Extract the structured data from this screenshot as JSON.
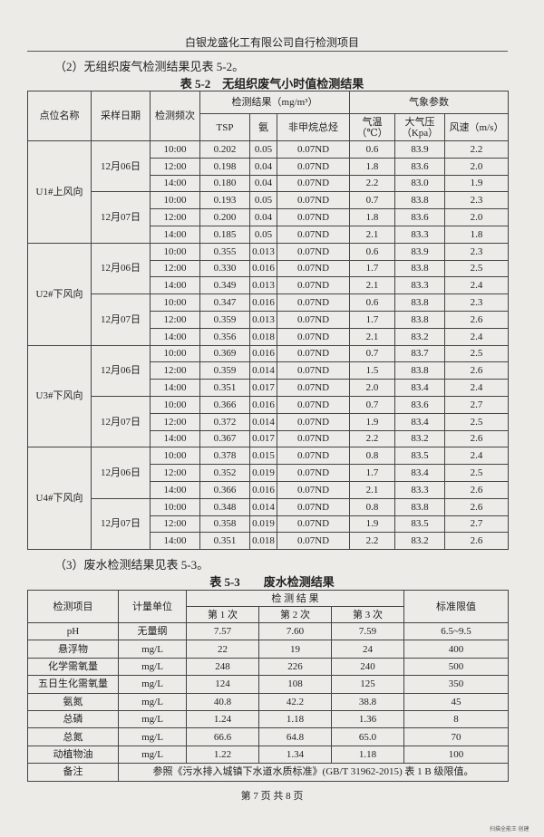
{
  "header": {
    "title": "白银龙盛化工有限公司自行检测项目"
  },
  "section2": {
    "intro": "（2）无组织废气检测结果见表 5-2。"
  },
  "table1": {
    "title": "表 5-2　无组织废气小时值检测结果",
    "header": {
      "site": "点位名称",
      "date": "采样日期",
      "freq": "检测频次",
      "results": "检测结果（mg/m³）",
      "tsp": "TSP",
      "nh3": "氨",
      "nmhc": "非甲烷总烃",
      "weather": "气象参数",
      "temp": "气温（℃）",
      "pressure": "大气压（Kpa）",
      "wind": "风速（m/s）"
    },
    "sites": [
      {
        "name": "U1#上风向",
        "dates": [
          {
            "date": "12月06日",
            "rows": [
              [
                "10:00",
                "0.202",
                "0.05",
                "0.07ND",
                "0.6",
                "83.9",
                "2.2"
              ],
              [
                "12:00",
                "0.198",
                "0.04",
                "0.07ND",
                "1.8",
                "83.6",
                "2.0"
              ],
              [
                "14:00",
                "0.180",
                "0.04",
                "0.07ND",
                "2.2",
                "83.0",
                "1.9"
              ]
            ]
          },
          {
            "date": "12月07日",
            "rows": [
              [
                "10:00",
                "0.193",
                "0.05",
                "0.07ND",
                "0.7",
                "83.8",
                "2.3"
              ],
              [
                "12:00",
                "0.200",
                "0.04",
                "0.07ND",
                "1.8",
                "83.6",
                "2.0"
              ],
              [
                "14:00",
                "0.185",
                "0.05",
                "0.07ND",
                "2.1",
                "83.3",
                "1.8"
              ]
            ]
          }
        ]
      },
      {
        "name": "U2#下风向",
        "dates": [
          {
            "date": "12月06日",
            "rows": [
              [
                "10:00",
                "0.355",
                "0.013",
                "0.07ND",
                "0.6",
                "83.9",
                "2.3"
              ],
              [
                "12:00",
                "0.330",
                "0.016",
                "0.07ND",
                "1.7",
                "83.8",
                "2.5"
              ],
              [
                "14:00",
                "0.349",
                "0.013",
                "0.07ND",
                "2.1",
                "83.3",
                "2.4"
              ]
            ]
          },
          {
            "date": "12月07日",
            "rows": [
              [
                "10:00",
                "0.347",
                "0.016",
                "0.07ND",
                "0.6",
                "83.8",
                "2.3"
              ],
              [
                "12:00",
                "0.359",
                "0.013",
                "0.07ND",
                "1.7",
                "83.8",
                "2.6"
              ],
              [
                "14:00",
                "0.356",
                "0.018",
                "0.07ND",
                "2.1",
                "83.2",
                "2.4"
              ]
            ]
          }
        ]
      },
      {
        "name": "U3#下风向",
        "dates": [
          {
            "date": "12月06日",
            "rows": [
              [
                "10:00",
                "0.369",
                "0.016",
                "0.07ND",
                "0.7",
                "83.7",
                "2.5"
              ],
              [
                "12:00",
                "0.359",
                "0.014",
                "0.07ND",
                "1.5",
                "83.8",
                "2.6"
              ],
              [
                "14:00",
                "0.351",
                "0.017",
                "0.07ND",
                "2.0",
                "83.4",
                "2.4"
              ]
            ]
          },
          {
            "date": "12月07日",
            "rows": [
              [
                "10:00",
                "0.366",
                "0.016",
                "0.07ND",
                "0.7",
                "83.6",
                "2.7"
              ],
              [
                "12:00",
                "0.372",
                "0.014",
                "0.07ND",
                "1.9",
                "83.4",
                "2.5"
              ],
              [
                "14:00",
                "0.367",
                "0.017",
                "0.07ND",
                "2.2",
                "83.2",
                "2.6"
              ]
            ]
          }
        ]
      },
      {
        "name": "U4#下风向",
        "dates": [
          {
            "date": "12月06日",
            "rows": [
              [
                "10:00",
                "0.378",
                "0.015",
                "0.07ND",
                "0.8",
                "83.5",
                "2.4"
              ],
              [
                "12:00",
                "0.352",
                "0.019",
                "0.07ND",
                "1.7",
                "83.4",
                "2.5"
              ],
              [
                "14:00",
                "0.366",
                "0.016",
                "0.07ND",
                "2.1",
                "83.3",
                "2.6"
              ]
            ]
          },
          {
            "date": "12月07日",
            "rows": [
              [
                "10:00",
                "0.348",
                "0.014",
                "0.07ND",
                "0.8",
                "83.8",
                "2.6"
              ],
              [
                "12:00",
                "0.358",
                "0.019",
                "0.07ND",
                "1.9",
                "83.5",
                "2.7"
              ],
              [
                "14:00",
                "0.351",
                "0.018",
                "0.07ND",
                "2.2",
                "83.2",
                "2.6"
              ]
            ]
          }
        ]
      }
    ]
  },
  "section3": {
    "intro": "（3）废水检测结果见表 5-3。"
  },
  "table2": {
    "title": "表 5-3　　废水检测结果",
    "header": {
      "item": "检测项目",
      "unit": "计量单位",
      "results": "检 测 结 果",
      "run1": "第 1 次",
      "run2": "第 2 次",
      "run3": "第 3 次",
      "limit": "标准限值"
    },
    "rows": [
      [
        "pH",
        "无量纲",
        "7.57",
        "7.60",
        "7.59",
        "6.5~9.5"
      ],
      [
        "悬浮物",
        "mg/L",
        "22",
        "19",
        "24",
        "400"
      ],
      [
        "化学需氧量",
        "mg/L",
        "248",
        "226",
        "240",
        "500"
      ],
      [
        "五日生化需氧量",
        "mg/L",
        "124",
        "108",
        "125",
        "350"
      ],
      [
        "氨氮",
        "mg/L",
        "40.8",
        "42.2",
        "38.8",
        "45"
      ],
      [
        "总磷",
        "mg/L",
        "1.24",
        "1.18",
        "1.36",
        "8"
      ],
      [
        "总氮",
        "mg/L",
        "66.6",
        "64.8",
        "65.0",
        "70"
      ],
      [
        "动植物油",
        "mg/L",
        "1.22",
        "1.34",
        "1.18",
        "100"
      ]
    ],
    "note_label": "备注",
    "note": "参照《污水排入城镇下水道水质标准》(GB/T 31962-2015) 表 1 B 级限值。"
  },
  "footer": {
    "page": "第 7 页 共 8 页",
    "watermark": "扫描全能王 创建"
  }
}
